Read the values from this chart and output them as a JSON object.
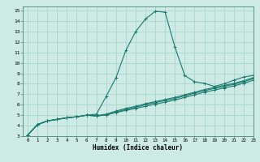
{
  "xlabel": "Humidex (Indice chaleur)",
  "bg_color": "#cdeae4",
  "grid_color": "#a8d5cd",
  "line_color": "#1a7a6e",
  "xlim": [
    -0.5,
    23
  ],
  "ylim": [
    3,
    15.4
  ],
  "xticks": [
    0,
    1,
    2,
    3,
    4,
    5,
    6,
    7,
    8,
    9,
    10,
    11,
    12,
    13,
    14,
    15,
    16,
    17,
    18,
    19,
    20,
    21,
    22,
    23
  ],
  "yticks": [
    3,
    4,
    5,
    6,
    7,
    8,
    9,
    10,
    11,
    12,
    13,
    14,
    15
  ],
  "lines": [
    [
      3.1,
      4.1,
      4.45,
      4.6,
      4.75,
      4.85,
      5.0,
      5.1,
      6.8,
      8.6,
      11.2,
      13.0,
      14.2,
      14.95,
      14.85,
      11.5,
      8.8,
      8.2,
      8.05,
      7.75,
      8.0,
      8.35,
      8.65,
      8.8
    ],
    [
      3.1,
      4.1,
      4.45,
      4.6,
      4.75,
      4.85,
      5.0,
      4.95,
      5.0,
      5.3,
      5.55,
      5.75,
      6.0,
      6.2,
      6.4,
      6.6,
      6.85,
      7.1,
      7.35,
      7.55,
      7.75,
      7.95,
      8.2,
      8.5
    ],
    [
      3.1,
      4.1,
      4.45,
      4.6,
      4.75,
      4.85,
      5.0,
      4.9,
      5.05,
      5.25,
      5.45,
      5.65,
      5.85,
      6.05,
      6.25,
      6.45,
      6.7,
      6.95,
      7.2,
      7.4,
      7.6,
      7.8,
      8.05,
      8.35
    ],
    [
      3.1,
      4.1,
      4.45,
      4.6,
      4.75,
      4.85,
      5.0,
      4.95,
      5.1,
      5.4,
      5.65,
      5.85,
      6.1,
      6.3,
      6.5,
      6.7,
      6.95,
      7.2,
      7.45,
      7.65,
      7.85,
      8.05,
      8.3,
      8.6
    ]
  ]
}
